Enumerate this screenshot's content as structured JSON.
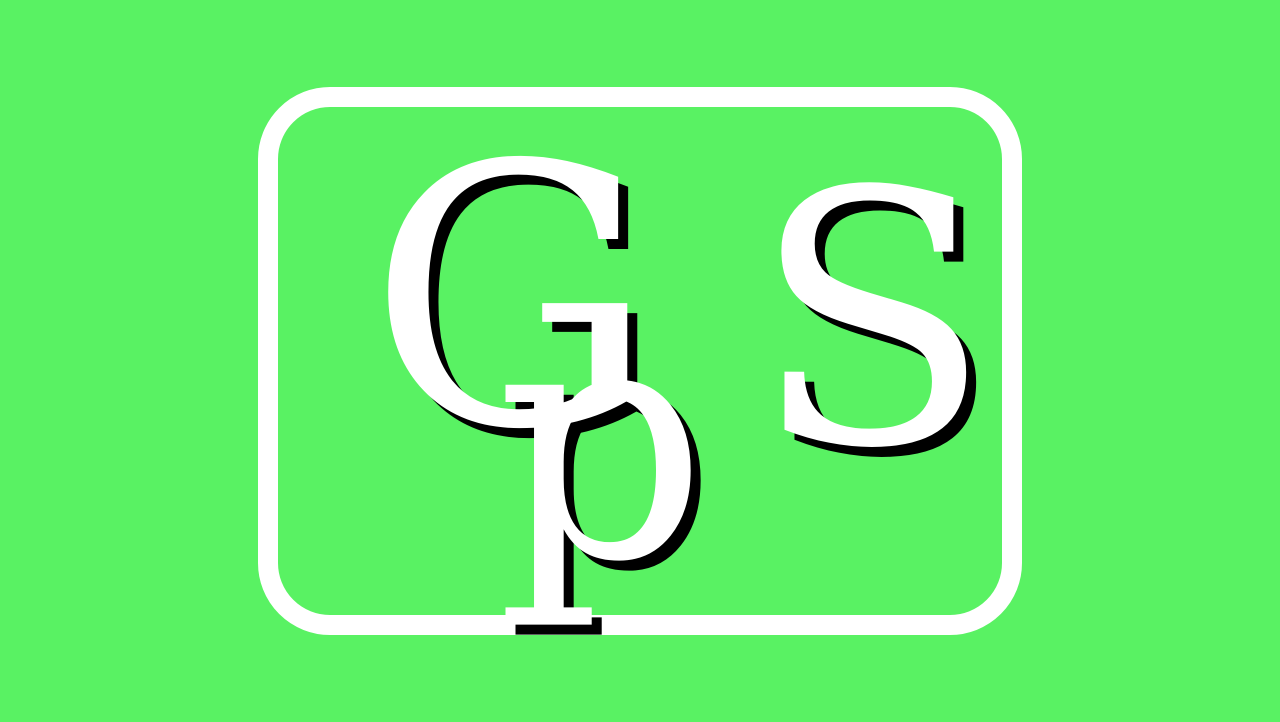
{
  "logo": {
    "letters": [
      "G",
      "p",
      "S"
    ],
    "text": "GpS",
    "colors": {
      "background": "#59f263",
      "frame": "#ffffff",
      "letter_fill": "#ffffff",
      "letter_shadow": "#000000"
    }
  }
}
